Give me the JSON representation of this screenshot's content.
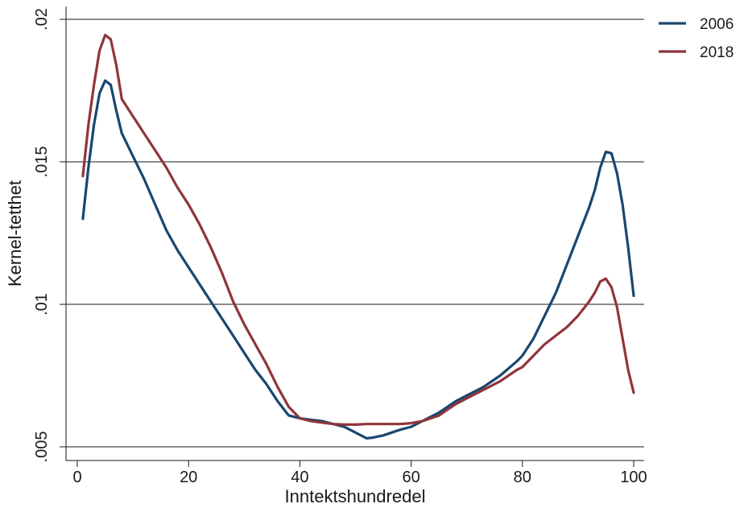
{
  "chart_data": {
    "type": "line",
    "title": "",
    "xlabel": "Inntektshundredel",
    "ylabel": "Kernel-tetthet",
    "xlim": [
      0,
      100
    ],
    "ylim": [
      0.005,
      0.02
    ],
    "x_ticks": [
      0,
      20,
      40,
      60,
      80,
      100
    ],
    "x_tick_labels": [
      "0",
      "20",
      "40",
      "60",
      "80",
      "100"
    ],
    "y_ticks": [
      0.005,
      0.01,
      0.015,
      0.02
    ],
    "y_tick_labels": [
      ".005",
      ".01",
      ".015",
      ".02"
    ],
    "grid": "horizontal",
    "legend_position": "top-right",
    "series": [
      {
        "name": "2006",
        "color": "#1a476f",
        "points": [
          [
            1,
            0.013
          ],
          [
            2,
            0.0148
          ],
          [
            3,
            0.0163
          ],
          [
            4,
            0.0174
          ],
          [
            5,
            0.01785
          ],
          [
            6,
            0.0177
          ],
          [
            7,
            0.0168
          ],
          [
            8,
            0.016
          ],
          [
            10,
            0.0152
          ],
          [
            12,
            0.0144
          ],
          [
            14,
            0.0135
          ],
          [
            16,
            0.0126
          ],
          [
            18,
            0.0119
          ],
          [
            20,
            0.0113
          ],
          [
            22,
            0.0107
          ],
          [
            24,
            0.0101
          ],
          [
            26,
            0.0095
          ],
          [
            28,
            0.0089
          ],
          [
            30,
            0.0083
          ],
          [
            32,
            0.0077
          ],
          [
            34,
            0.0072
          ],
          [
            36,
            0.0066
          ],
          [
            38,
            0.0061
          ],
          [
            40,
            0.006
          ],
          [
            42,
            0.00595
          ],
          [
            44,
            0.0059
          ],
          [
            46,
            0.0058
          ],
          [
            48,
            0.0057
          ],
          [
            50,
            0.0055
          ],
          [
            52,
            0.0053
          ],
          [
            53,
            0.00532
          ],
          [
            55,
            0.0054
          ],
          [
            58,
            0.0056
          ],
          [
            60,
            0.0057
          ],
          [
            62,
            0.0059
          ],
          [
            65,
            0.0062
          ],
          [
            68,
            0.0066
          ],
          [
            70,
            0.0068
          ],
          [
            73,
            0.0071
          ],
          [
            76,
            0.0075
          ],
          [
            79,
            0.008
          ],
          [
            80,
            0.0082
          ],
          [
            82,
            0.0088
          ],
          [
            84,
            0.0096
          ],
          [
            86,
            0.0104
          ],
          [
            88,
            0.0114
          ],
          [
            90,
            0.0124
          ],
          [
            92,
            0.0134
          ],
          [
            93,
            0.014
          ],
          [
            94,
            0.0148
          ],
          [
            95,
            0.01535
          ],
          [
            96,
            0.0153
          ],
          [
            97,
            0.0146
          ],
          [
            98,
            0.0135
          ],
          [
            99,
            0.012
          ],
          [
            100,
            0.0103
          ]
        ]
      },
      {
        "name": "2018",
        "color": "#90353b",
        "points": [
          [
            1,
            0.0145
          ],
          [
            2,
            0.0163
          ],
          [
            3,
            0.0177
          ],
          [
            4,
            0.0189
          ],
          [
            5,
            0.01945
          ],
          [
            6,
            0.0193
          ],
          [
            7,
            0.0184
          ],
          [
            8,
            0.0172
          ],
          [
            10,
            0.0166
          ],
          [
            12,
            0.016
          ],
          [
            14,
            0.0154
          ],
          [
            16,
            0.0148
          ],
          [
            18,
            0.0141
          ],
          [
            20,
            0.0135
          ],
          [
            22,
            0.0128
          ],
          [
            24,
            0.012
          ],
          [
            26,
            0.0111
          ],
          [
            28,
            0.0101
          ],
          [
            30,
            0.0093
          ],
          [
            32,
            0.0086
          ],
          [
            34,
            0.0079
          ],
          [
            36,
            0.0071
          ],
          [
            38,
            0.0064
          ],
          [
            40,
            0.006
          ],
          [
            42,
            0.0059
          ],
          [
            44,
            0.00585
          ],
          [
            46,
            0.0058
          ],
          [
            48,
            0.00578
          ],
          [
            50,
            0.00578
          ],
          [
            52,
            0.0058
          ],
          [
            55,
            0.0058
          ],
          [
            58,
            0.0058
          ],
          [
            60,
            0.00583
          ],
          [
            62,
            0.0059
          ],
          [
            65,
            0.0061
          ],
          [
            68,
            0.0065
          ],
          [
            70,
            0.0067
          ],
          [
            73,
            0.007
          ],
          [
            76,
            0.0073
          ],
          [
            79,
            0.0077
          ],
          [
            80,
            0.0078
          ],
          [
            82,
            0.0082
          ],
          [
            84,
            0.0086
          ],
          [
            86,
            0.0089
          ],
          [
            88,
            0.0092
          ],
          [
            90,
            0.0096
          ],
          [
            92,
            0.0101
          ],
          [
            93,
            0.0104
          ],
          [
            94,
            0.0108
          ],
          [
            95,
            0.0109
          ],
          [
            96,
            0.0106
          ],
          [
            97,
            0.0099
          ],
          [
            98,
            0.0088
          ],
          [
            99,
            0.0077
          ],
          [
            100,
            0.0069
          ]
        ]
      }
    ]
  }
}
